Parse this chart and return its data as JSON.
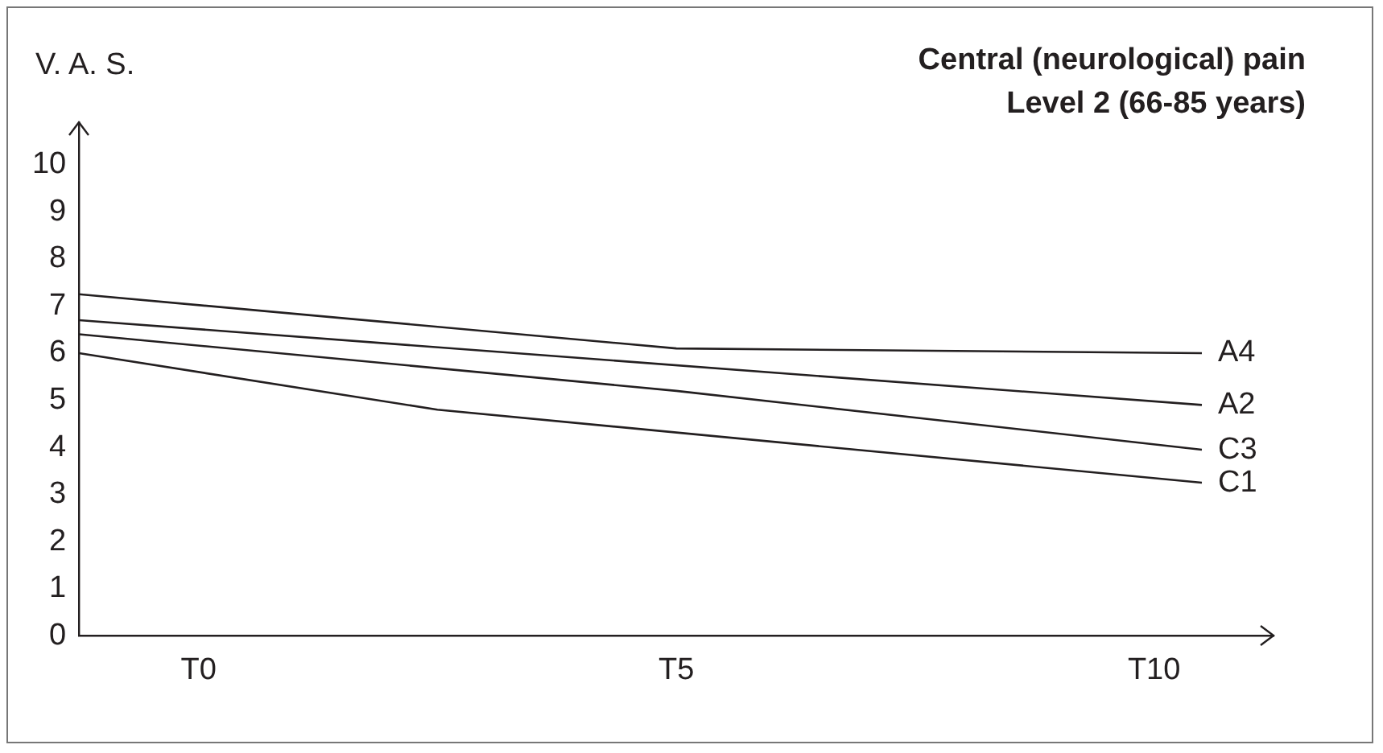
{
  "chart_data": {
    "type": "line",
    "title": "Central (neurological) pain\nLevel 2 (66-85 years)",
    "ylabel": "V. A. S.",
    "categories": [
      null,
      null,
      null,
      null,
      null,
      "T0",
      null,
      null,
      null,
      null,
      null,
      null,
      null,
      null,
      null,
      null,
      null,
      null,
      null,
      null,
      null,
      null,
      null,
      null,
      null,
      "T5",
      null,
      null,
      null,
      null,
      null,
      null,
      null,
      null,
      null,
      null,
      null,
      null,
      null,
      null,
      null,
      null,
      null,
      null,
      null,
      "T10",
      null,
      null,
      null,
      null,
      null
    ],
    "ylim": [
      0,
      10.9
    ],
    "yticks": [
      0,
      1,
      2,
      3,
      4,
      5,
      6,
      7,
      8,
      9,
      10
    ],
    "grid": false,
    "legend": false,
    "marker": "none",
    "line_style": "solid",
    "series": [
      {
        "name": "A4",
        "color": "#231f20",
        "values": [
          7.25,
          null,
          null,
          null,
          null,
          null,
          null,
          null,
          null,
          null,
          null,
          null,
          null,
          null,
          null,
          null,
          null,
          null,
          null,
          null,
          null,
          null,
          null,
          null,
          null,
          6.1,
          null,
          null,
          null,
          null,
          null,
          null,
          null,
          null,
          null,
          null,
          null,
          null,
          null,
          null,
          null,
          null,
          null,
          null,
          null,
          null,
          null,
          6.0,
          null,
          null,
          null
        ]
      },
      {
        "name": "A2",
        "color": "#231f20",
        "values": [
          6.7,
          null,
          null,
          null,
          null,
          null,
          null,
          null,
          null,
          null,
          null,
          null,
          null,
          null,
          null,
          null,
          null,
          null,
          null,
          null,
          null,
          null,
          null,
          null,
          null,
          null,
          null,
          null,
          null,
          null,
          null,
          null,
          null,
          null,
          null,
          null,
          null,
          null,
          null,
          null,
          null,
          null,
          null,
          null,
          null,
          null,
          null,
          4.9,
          null,
          null,
          null
        ]
      },
      {
        "name": "C3",
        "color": "#231f20",
        "values": [
          6.4,
          null,
          null,
          null,
          null,
          null,
          null,
          null,
          null,
          null,
          null,
          null,
          null,
          null,
          null,
          null,
          null,
          null,
          null,
          null,
          null,
          null,
          null,
          null,
          null,
          5.2,
          null,
          null,
          null,
          null,
          null,
          null,
          null,
          null,
          null,
          null,
          null,
          null,
          null,
          null,
          null,
          null,
          null,
          null,
          null,
          null,
          null,
          3.95,
          null,
          null,
          null
        ]
      },
      {
        "name": "C1",
        "color": "#231f20",
        "values": [
          6.0,
          null,
          null,
          null,
          null,
          null,
          null,
          null,
          null,
          null,
          null,
          null,
          null,
          null,
          null,
          4.8,
          null,
          null,
          null,
          null,
          null,
          null,
          null,
          null,
          null,
          null,
          null,
          null,
          null,
          null,
          null,
          null,
          null,
          null,
          null,
          null,
          null,
          null,
          null,
          null,
          null,
          null,
          null,
          null,
          null,
          null,
          null,
          3.25,
          null,
          null,
          null
        ]
      }
    ]
  }
}
